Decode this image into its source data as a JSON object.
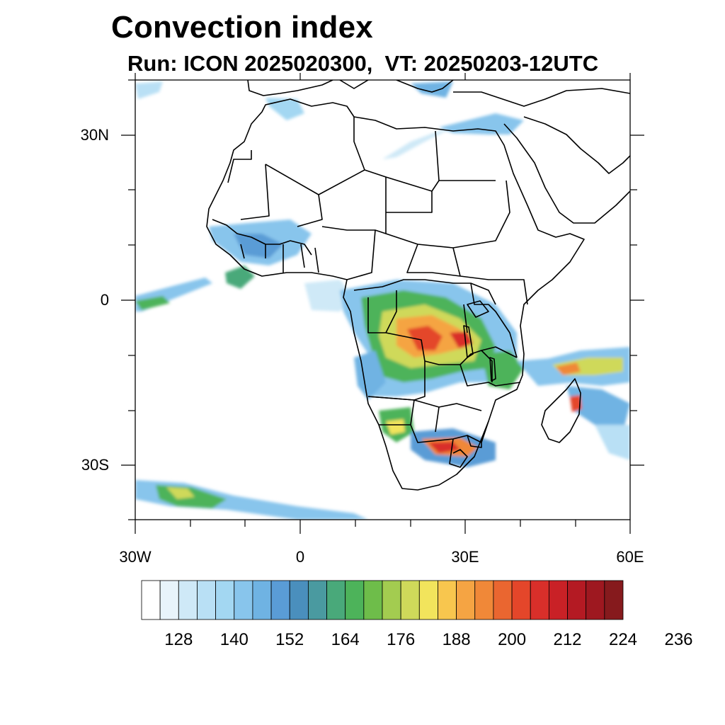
{
  "header": {
    "title": "Convection index",
    "subtitle": "Run: ICON 2025020300,  VT: 20250203-12UTC"
  },
  "map": {
    "lat_labels": [
      "30N",
      "0",
      "30S"
    ],
    "lon_labels": [
      "30W",
      "0",
      "30E",
      "60E"
    ]
  },
  "colorbar": {
    "colors": [
      "#ffffff",
      "#e8f4fb",
      "#cfe9f7",
      "#b9e0f5",
      "#a3d7f2",
      "#88c5ec",
      "#6fb3e3",
      "#5a9cd6",
      "#4a8fbd",
      "#4a9aa0",
      "#49a97a",
      "#4db35a",
      "#6ebd4a",
      "#a3cc50",
      "#cfd95a",
      "#f2e45c",
      "#f8c64e",
      "#f5a443",
      "#f08838",
      "#ea6630",
      "#e4462a",
      "#d92f2a",
      "#c92126",
      "#b41a23",
      "#9e1820",
      "#861a1d"
    ],
    "labels": [
      "128",
      "140",
      "152",
      "164",
      "176",
      "188",
      "200",
      "212",
      "224",
      "236"
    ]
  }
}
